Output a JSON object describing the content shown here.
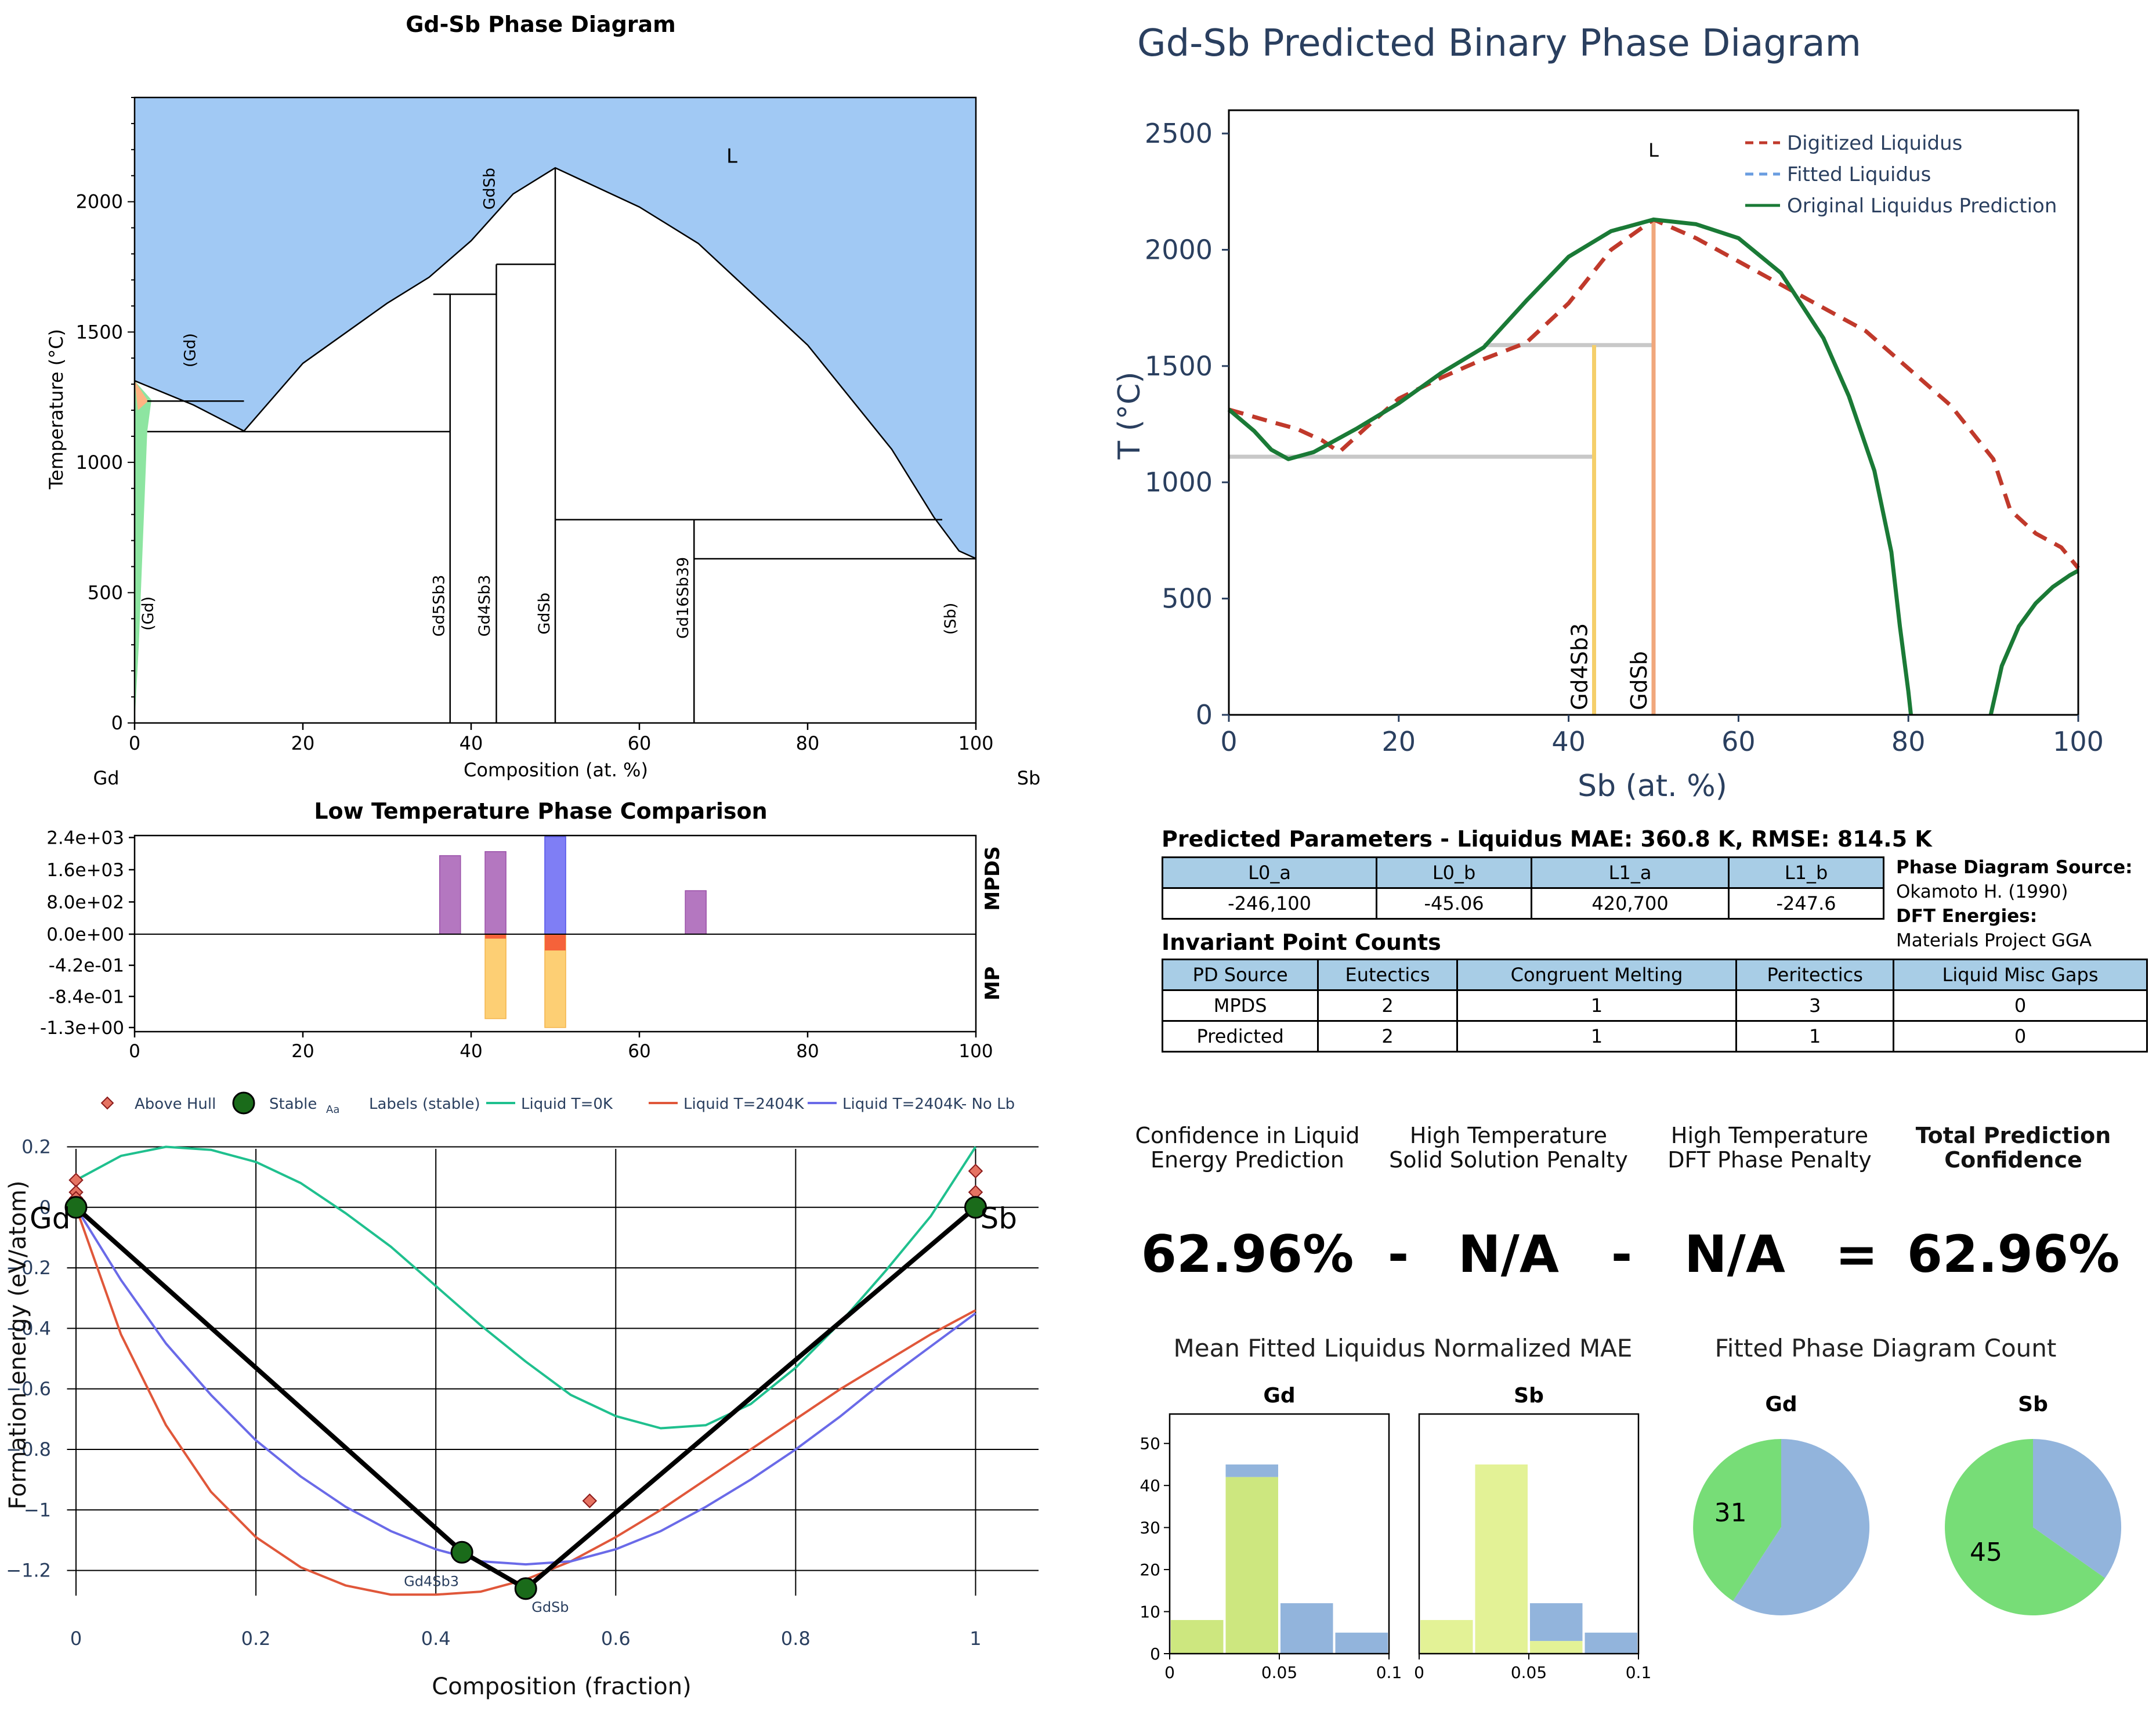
{
  "chart_data": [
    {
      "type": "area",
      "title": "Gd-Sb Phase Diagram",
      "xlabel": "Composition (at. %)",
      "ylabel": "Temperature (°C)",
      "xlim": [
        0,
        100
      ],
      "ylim": [
        0,
        2400
      ],
      "x_ticks": [
        "0",
        "20",
        "40",
        "60",
        "80",
        "100"
      ],
      "y_ticks": [
        "0",
        "500",
        "1000",
        "1500",
        "2000"
      ],
      "left_element": "Gd",
      "right_element": "Sb",
      "region_labels": [
        "L",
        "GdSb",
        "(Gd)",
        "(Gd)",
        "(Sb)"
      ],
      "compound_labels": [
        "Gd5Sb3",
        "Gd4Sb3",
        "GdSb",
        "Gd16Sb39"
      ],
      "liquid_color": "#a1c9f4",
      "liquidus": [
        [
          0,
          1313
        ],
        [
          7,
          1220
        ],
        [
          13,
          1120
        ],
        [
          20,
          1380
        ],
        [
          30,
          1610
        ],
        [
          35,
          1710
        ],
        [
          40,
          1850
        ],
        [
          45,
          2030
        ],
        [
          50,
          2130
        ],
        [
          60,
          1980
        ],
        [
          67,
          1840
        ],
        [
          80,
          1450
        ],
        [
          90,
          1050
        ],
        [
          95,
          790
        ],
        [
          98,
          660
        ],
        [
          100,
          631
        ]
      ],
      "horizontals": [
        [
          1.5,
          13,
          1235
        ],
        [
          1.5,
          37.5,
          1118
        ],
        [
          35.5,
          43,
          1645
        ],
        [
          43,
          50,
          1760
        ],
        [
          50,
          96,
          780
        ],
        [
          66.5,
          100,
          630
        ]
      ],
      "verticals": [
        [
          37.5,
          0,
          1645
        ],
        [
          43,
          0,
          1760
        ],
        [
          50,
          0,
          2130
        ],
        [
          66.5,
          0,
          780
        ]
      ]
    },
    {
      "type": "bar",
      "title": "Low Temperature Phase Comparison",
      "xlim": [
        0,
        100
      ],
      "x_ticks": [
        "0",
        "20",
        "40",
        "60",
        "80",
        "100"
      ],
      "y_ticks": [
        "2.4e+03",
        "1.6e+03",
        "8.0e+02",
        "0.0e+00",
        "-4.2e-01",
        "-8.4e-01",
        "-1.3e+00"
      ],
      "panel_labels": [
        "MPDS",
        "MP"
      ],
      "mpds": [
        {
          "x": 37.5,
          "value": 1950,
          "color": "#b477c0"
        },
        {
          "x": 42.9,
          "value": 2050,
          "color": "#b477c0"
        },
        {
          "x": 50,
          "value": 2420,
          "color": "#7f7ef5"
        },
        {
          "x": 66.7,
          "value": 1080,
          "color": "#b477c0"
        }
      ],
      "mpds_max": 2420,
      "mp": [
        {
          "x": 42.9,
          "value": -1.14,
          "cap": -0.06
        },
        {
          "x": 50,
          "value": -1.26,
          "cap": -0.22
        }
      ],
      "mp_min": -1.3
    },
    {
      "type": "line",
      "xlabel": "Composition (fraction)",
      "ylabel": "Formation energy (eV/atom)",
      "xlim": [
        -0.02,
        1.07
      ],
      "ylim": [
        -1.36,
        0.27
      ],
      "x_ticks": [
        "0",
        "0.2",
        "0.4",
        "0.6",
        "0.8",
        "1"
      ],
      "y_ticks": [
        "0.2",
        "0",
        "−0.2",
        "−0.4",
        "−0.6",
        "−0.8",
        "−1",
        "−1.2"
      ],
      "legend": [
        "Above Hull",
        "Stable",
        "Labels (stable)",
        "Liquid T=0K",
        "Liquid T=2404K",
        "Liquid T=2404K- No Lb"
      ],
      "legend_sample": "Aa",
      "series": [
        {
          "name": "Liquid T=0K",
          "color": "#1fc08e",
          "x": [
            0,
            0.05,
            0.1,
            0.15,
            0.2,
            0.25,
            0.3,
            0.35,
            0.4,
            0.45,
            0.5,
            0.55,
            0.6,
            0.65,
            0.7,
            0.75,
            0.8,
            0.85,
            0.9,
            0.95,
            1
          ],
          "y": [
            0.09,
            0.17,
            0.2,
            0.19,
            0.15,
            0.08,
            -0.02,
            -0.13,
            -0.26,
            -0.39,
            -0.51,
            -0.62,
            -0.69,
            -0.73,
            -0.72,
            -0.65,
            -0.53,
            -0.38,
            -0.21,
            -0.03,
            0.2
          ]
        },
        {
          "name": "Liquid T=2404K",
          "color": "#e0573a",
          "x": [
            0,
            0.05,
            0.1,
            0.15,
            0.2,
            0.25,
            0.3,
            0.35,
            0.4,
            0.45,
            0.5,
            0.55,
            0.6,
            0.65,
            0.7,
            0.75,
            0.8,
            0.85,
            0.9,
            0.95,
            1
          ],
          "y": [
            0,
            -0.42,
            -0.72,
            -0.94,
            -1.09,
            -1.19,
            -1.25,
            -1.28,
            -1.28,
            -1.27,
            -1.23,
            -1.17,
            -1.09,
            -1,
            -0.9,
            -0.8,
            -0.7,
            -0.6,
            -0.51,
            -0.42,
            -0.34
          ]
        },
        {
          "name": "Liquid T=2404K- No Lb",
          "color": "#6a6ae8",
          "x": [
            0,
            0.05,
            0.1,
            0.15,
            0.2,
            0.25,
            0.3,
            0.35,
            0.4,
            0.45,
            0.5,
            0.55,
            0.6,
            0.65,
            0.7,
            0.75,
            0.8,
            0.85,
            0.9,
            0.95,
            1
          ],
          "y": [
            0,
            -0.24,
            -0.45,
            -0.62,
            -0.77,
            -0.89,
            -0.99,
            -1.07,
            -1.13,
            -1.17,
            -1.18,
            -1.17,
            -1.13,
            -1.07,
            -0.99,
            -0.9,
            -0.8,
            -0.69,
            -0.57,
            -0.46,
            -0.35
          ]
        },
        {
          "name": "Hull",
          "color": "#000000",
          "x": [
            0,
            0.43,
            0.5,
            1
          ],
          "y": [
            0,
            -1.14,
            -1.26,
            0
          ]
        }
      ],
      "stable": [
        {
          "x": 0,
          "y": 0,
          "label": "Gd"
        },
        {
          "x": 0.429,
          "y": -1.14,
          "label": "Gd4Sb3"
        },
        {
          "x": 0.5,
          "y": -1.26,
          "label": "GdSb"
        },
        {
          "x": 1,
          "y": 0,
          "label": "Sb"
        }
      ],
      "above_hull": [
        {
          "x": 0,
          "y": 0.09
        },
        {
          "x": 0,
          "y": 0.05
        },
        {
          "x": 0,
          "y": 0.03
        },
        {
          "x": 0.571,
          "y": -0.97
        },
        {
          "x": 1,
          "y": 0.12
        },
        {
          "x": 1,
          "y": 0.05
        }
      ]
    },
    {
      "type": "line",
      "title": "Gd-Sb Predicted Binary Phase Diagram",
      "xlabel": "Sb (at. %)",
      "ylabel": "T (°C)",
      "xlim": [
        0,
        100
      ],
      "ylim": [
        0,
        2600
      ],
      "x_ticks": [
        "0",
        "20",
        "40",
        "60",
        "80",
        "100"
      ],
      "y_ticks": [
        "0",
        "500",
        "1000",
        "1500",
        "2000",
        "2500"
      ],
      "region_label": "L",
      "compound_labels": [
        "Gd4Sb3",
        "GdSb"
      ],
      "legend": [
        "Digitized Liquidus",
        "Fitted Liquidus",
        "Original Liquidus Prediction"
      ],
      "series": [
        {
          "name": "Digitized Liquidus",
          "color": "#c0392b",
          "dash": true,
          "x": [
            0,
            5,
            8,
            11,
            13,
            16,
            20,
            25,
            30,
            35,
            40,
            45,
            50,
            55,
            60,
            66,
            75,
            85,
            90,
            92,
            95,
            98,
            100
          ],
          "y": [
            1313,
            1260,
            1230,
            1180,
            1130,
            1230,
            1360,
            1450,
            1530,
            1600,
            1770,
            2000,
            2130,
            2050,
            1950,
            1830,
            1650,
            1330,
            1100,
            880,
            780,
            720,
            631
          ]
        },
        {
          "name": "Original Liquidus Prediction",
          "color": "#1a7a36",
          "x": [
            0,
            3,
            5,
            7,
            10,
            15,
            20,
            25,
            30,
            35,
            40,
            45,
            50,
            55,
            60,
            65,
            70,
            73,
            76,
            78,
            79,
            80,
            80.3
          ],
          "y": [
            1313,
            1220,
            1140,
            1100,
            1130,
            1230,
            1340,
            1470,
            1580,
            1780,
            1970,
            2080,
            2130,
            2110,
            2050,
            1900,
            1620,
            1370,
            1050,
            700,
            380,
            100,
            0
          ]
        },
        {
          "name": "Original Liquidus Prediction",
          "color": "#1a7a36",
          "x": [
            89.7,
            91,
            93,
            95,
            97,
            99,
            100
          ],
          "y": [
            0,
            210,
            380,
            480,
            550,
            600,
            620
          ]
        }
      ],
      "horizontals": [
        [
          0,
          43,
          1110
        ],
        [
          30,
          50,
          1590
        ]
      ],
      "verticals": [
        {
          "x": 43,
          "top": 1590,
          "color": "#f5cf6a"
        },
        {
          "x": 50,
          "top": 2130,
          "color": "#f0a77c"
        }
      ]
    },
    {
      "type": "bar",
      "title": "Gd",
      "x_ticks": [
        "0",
        "0.05",
        "0.1"
      ],
      "y_ticks": [
        "0",
        "10",
        "20",
        "30",
        "40",
        "50"
      ],
      "ylim": [
        0,
        57
      ],
      "bins": [
        [
          0,
          0.025
        ],
        [
          0.025,
          0.05
        ],
        [
          0.05,
          0.075
        ],
        [
          0.075,
          0.1
        ]
      ],
      "green": [
        8,
        42,
        0,
        0
      ],
      "blue": [
        0,
        3,
        12,
        5
      ]
    },
    {
      "type": "bar",
      "title": "Sb",
      "x_ticks": [
        "0",
        "0.05",
        "0.1"
      ],
      "ylim": [
        0,
        57
      ],
      "bins": [
        [
          0,
          0.025
        ],
        [
          0.025,
          0.05
        ],
        [
          0.05,
          0.075
        ],
        [
          0.075,
          0.1
        ]
      ],
      "green": [
        8,
        45,
        3,
        0
      ],
      "blue": [
        0,
        0,
        9,
        5
      ]
    },
    {
      "type": "pie",
      "title": "Gd",
      "slices": [
        {
          "value": 31,
          "color": "#77dd77",
          "label": "31"
        },
        {
          "value": 45,
          "color": "#92b4dc"
        }
      ]
    },
    {
      "type": "pie",
      "title": "Sb",
      "slices": [
        {
          "value": 45,
          "color": "#77dd77",
          "label": "45"
        },
        {
          "value": 24,
          "color": "#92b4dc"
        }
      ]
    }
  ],
  "params": {
    "title": "Predicted Parameters - Liquidus MAE: 360.8 K, RMSE: 814.5 K",
    "headers": [
      "L0_a",
      "L0_b",
      "L1_a",
      "L1_b"
    ],
    "values": [
      "-246,100",
      "-45.06",
      "420,700",
      "-247.6"
    ]
  },
  "source": {
    "pd_label": "Phase Diagram Source:",
    "pd_value": "Okamoto H. (1990)",
    "dft_label": "DFT Energies:",
    "dft_value": "Materials Project GGA"
  },
  "invariant": {
    "title": "Invariant Point Counts",
    "headers": [
      "PD Source",
      "Eutectics",
      "Congruent Melting",
      "Peritectics",
      "Liquid Misc Gaps"
    ],
    "rows": [
      [
        "MPDS",
        "2",
        "1",
        "3",
        "0"
      ],
      [
        "Predicted",
        "2",
        "1",
        "1",
        "0"
      ]
    ]
  },
  "confidence": {
    "label1": "Confidence in Liquid\nEnergy Prediction",
    "label2": "High Temperature\nSolid Solution Penalty",
    "label3": "High Temperature\nDFT Phase Penalty",
    "label4": "Total Prediction\nConfidence",
    "v1": "62.96%",
    "op1": "-",
    "v2": "N/A",
    "op2": "-",
    "v3": "N/A",
    "op3": "=",
    "v4": "62.96%"
  },
  "mae_title": "Mean Fitted Liquidus Normalized MAE",
  "count_title": "Fitted Phase Diagram Count"
}
